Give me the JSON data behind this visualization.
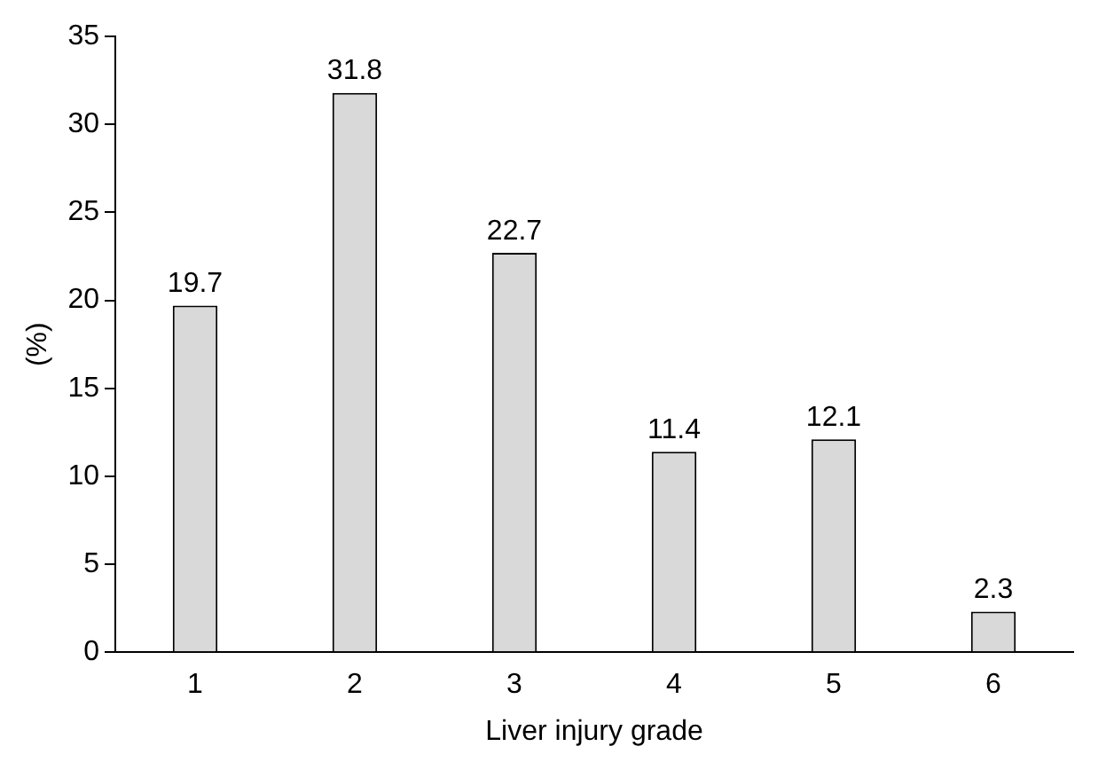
{
  "chart_data": {
    "type": "bar",
    "xlabel": "Liver injury grade",
    "ylabel": "(%)",
    "categories": [
      "1",
      "2",
      "3",
      "4",
      "5",
      "6"
    ],
    "values": [
      19.7,
      31.8,
      22.7,
      11.4,
      12.1,
      2.3
    ],
    "color": "#d9d9d9",
    "ylim": [
      0,
      35
    ],
    "yticks": [
      0,
      5,
      10,
      15,
      20,
      25,
      30,
      35
    ],
    "grid": false,
    "data_labels": true
  }
}
